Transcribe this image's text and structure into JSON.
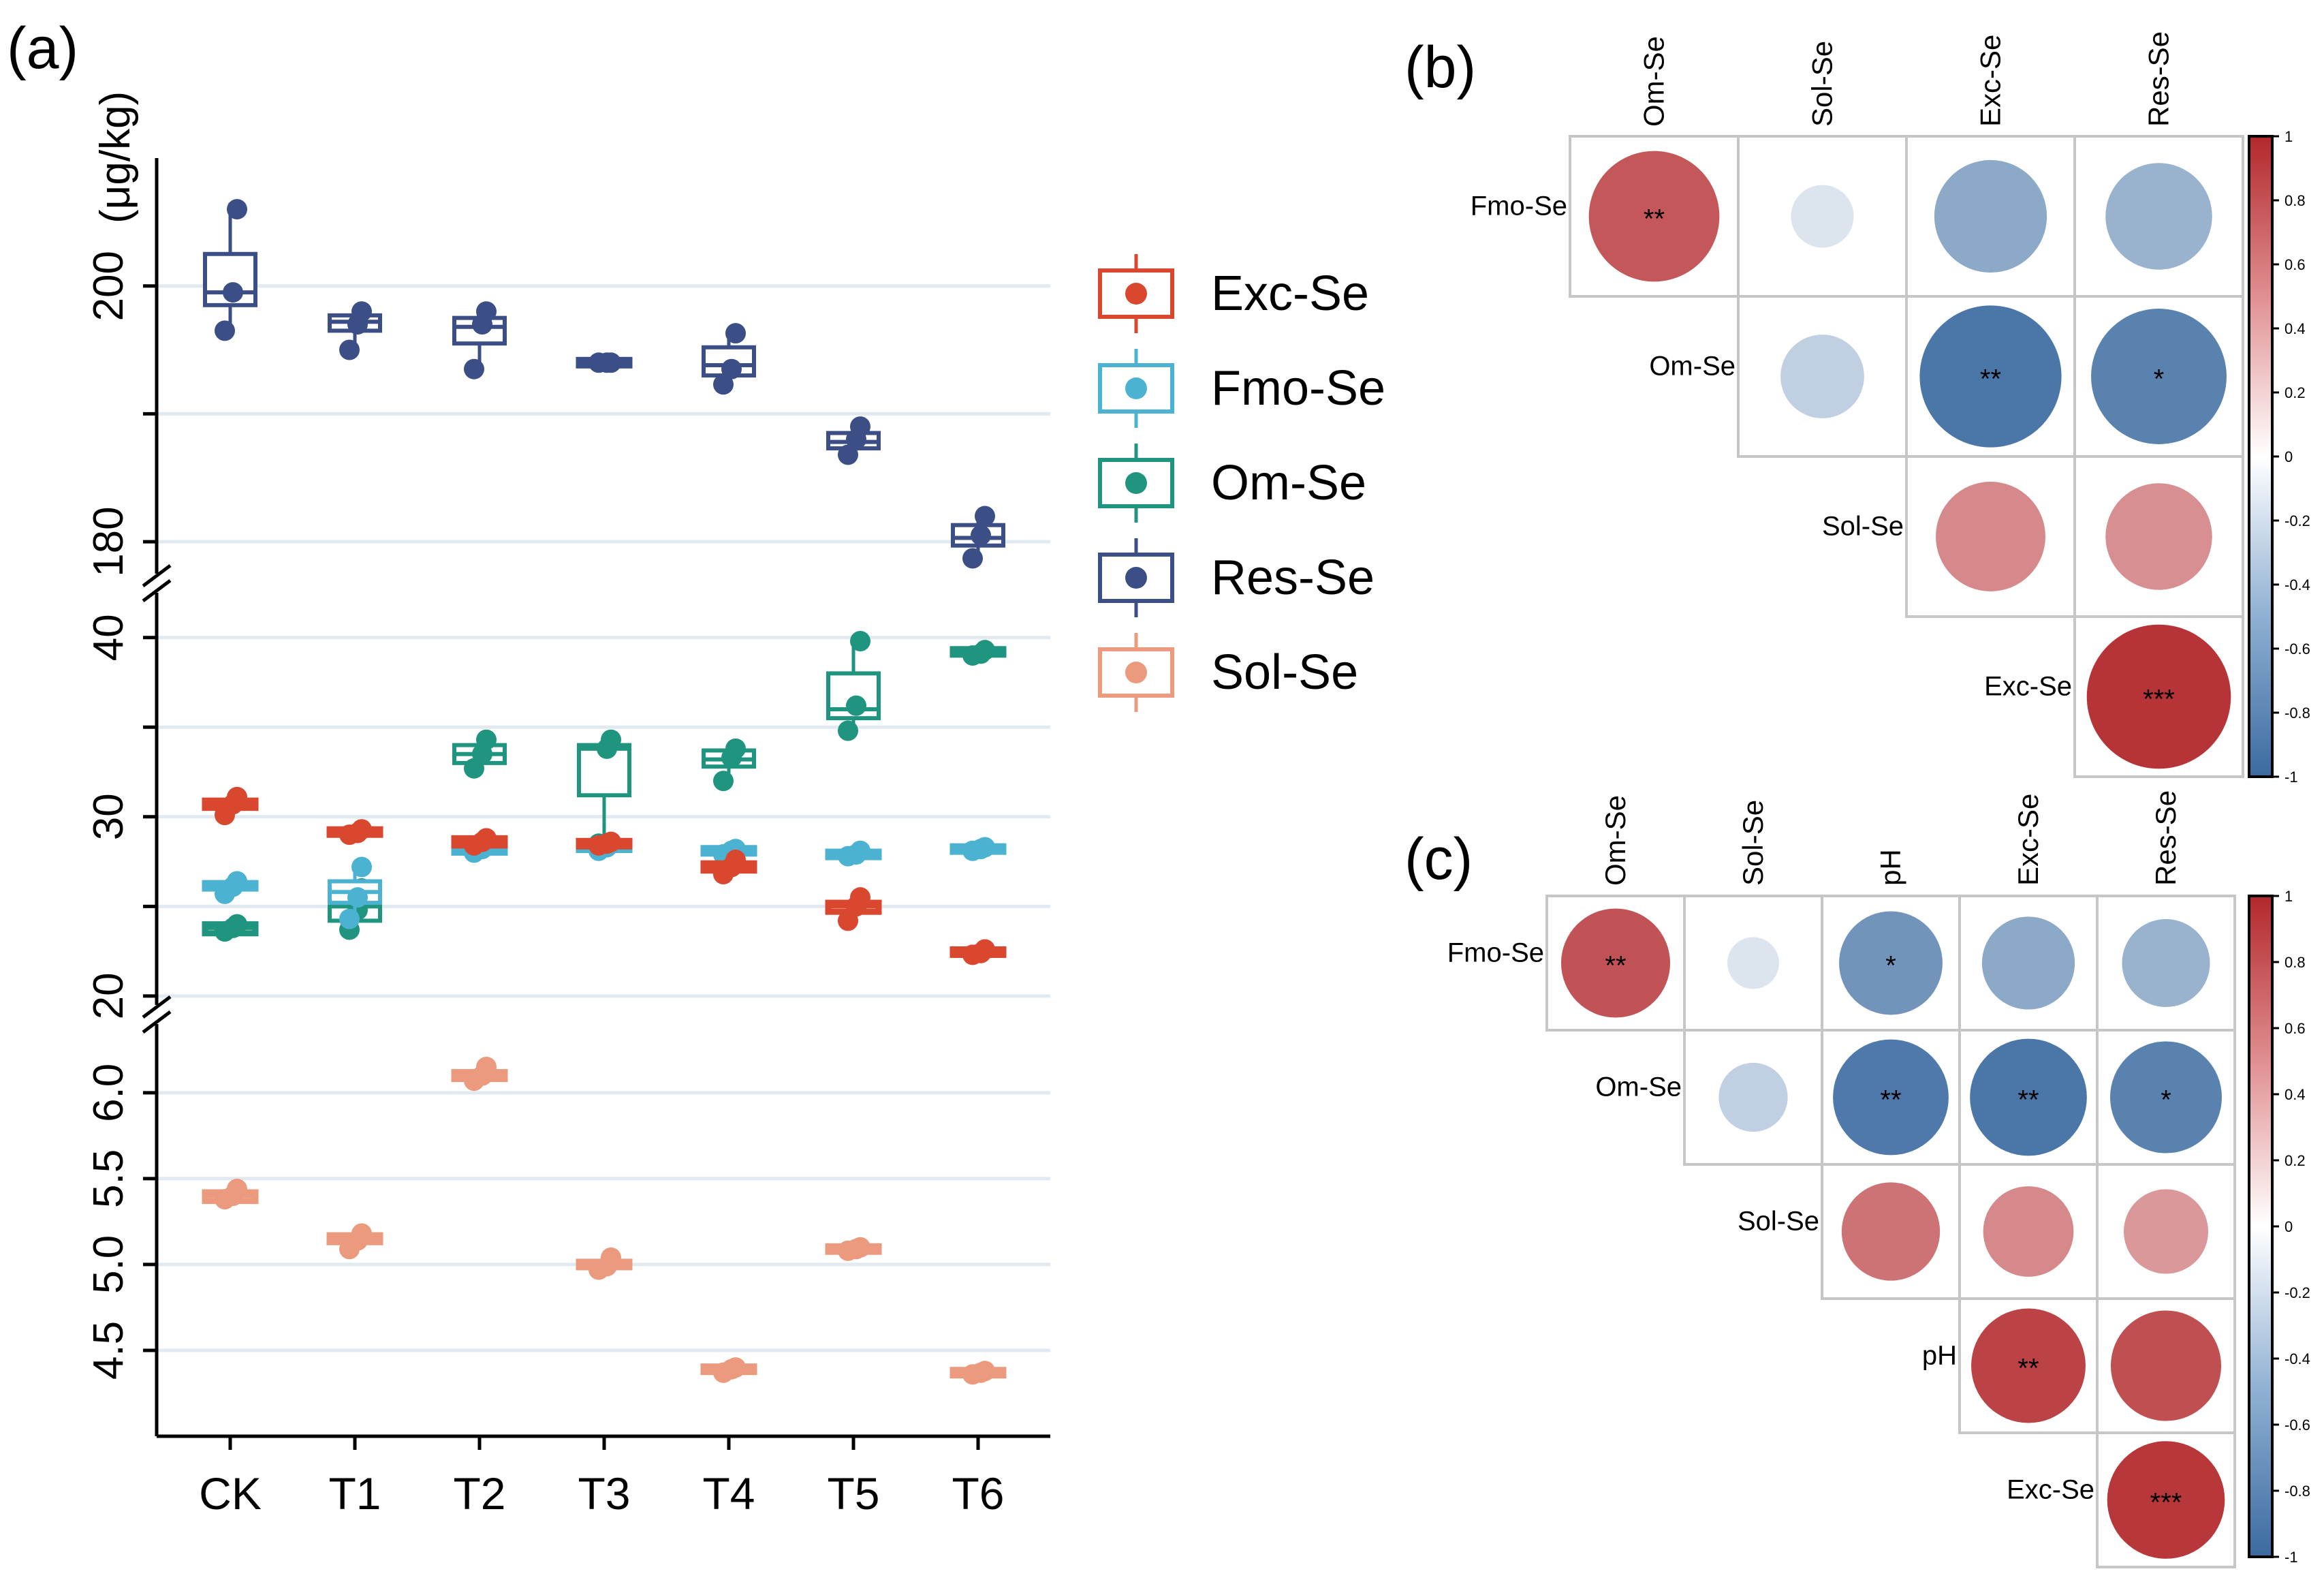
{
  "colors": {
    "Exc-Se": "#d9472f",
    "Fmo-Se": "#4bb3d1",
    "Om-Se": "#1f9580",
    "Res-Se": "#3b4f86",
    "Sol-Se": "#ec9a7e",
    "grid": "#e1eaf0",
    "axis": "#000000",
    "cell_border": "#c6c6c6",
    "cbar_pos": "#b2282c",
    "cbar_mid": "#ffffff",
    "cbar_neg": "#3b6aa0"
  },
  "chart_data": [
    {
      "id": "a",
      "type": "box",
      "panel_label": "(a)",
      "ylabel": "(μg/kg)",
      "categories": [
        "CK",
        "T1",
        "T2",
        "T3",
        "T4",
        "T5",
        "T6"
      ],
      "legend": [
        "Exc-Se",
        "Fmo-Se",
        "Om-Se",
        "Res-Se",
        "Sol-Se"
      ],
      "axis_breaks": [
        {
          "ylim": [
            177.5,
            210
          ],
          "ticks": [
            180,
            200
          ],
          "tick_labels": [
            "180",
            "200"
          ],
          "grid": [
            180,
            190,
            200
          ]
        },
        {
          "ylim": [
            19.5,
            42.5
          ],
          "ticks": [
            20,
            30,
            40
          ],
          "tick_labels": [
            "20",
            "30",
            "40"
          ],
          "grid": [
            20,
            25,
            30,
            35,
            40
          ]
        },
        {
          "ylim": [
            4.0,
            6.4
          ],
          "ticks": [
            4.5,
            5.0,
            5.5,
            6.0
          ],
          "tick_labels": [
            "4.5",
            "5.0",
            "5.5",
            "6.0"
          ],
          "grid": [
            4.5,
            5.0,
            5.5,
            6.0
          ]
        }
      ],
      "series": [
        {
          "name": "Res-Se",
          "segment": 0,
          "boxes": [
            [
              198.5,
              199.5,
              202.5
            ],
            [
              196.5,
              197.2,
              197.7
            ],
            [
              195.5,
              196.8,
              197.5
            ],
            [
              193.8,
              194,
              194.2
            ],
            [
              193,
              193.8,
              195.2
            ],
            [
              187.3,
              187.8,
              188.5
            ],
            [
              179.7,
              180.3,
              181.3
            ]
          ],
          "whiskers": [
            [
              196.5,
              206.5
            ],
            [
              195,
              198
            ],
            [
              193.8,
              198
            ],
            [
              193.7,
              194.2
            ],
            [
              192.5,
              196.5
            ],
            [
              187,
              189
            ],
            [
              179,
              182
            ]
          ],
          "points": [
            [
              196.5,
              199.5,
              206
            ],
            [
              195,
              197,
              198
            ],
            [
              193.5,
              197,
              198
            ],
            [
              194,
              194,
              194
            ],
            [
              192.3,
              193.5,
              196.3
            ],
            [
              186.8,
              188,
              189
            ],
            [
              178.7,
              180.5,
              182
            ]
          ]
        },
        {
          "name": "Om-Se",
          "segment": 1,
          "boxes": [
            [
              23.5,
              23.8,
              24.0
            ],
            [
              24.2,
              25,
              25.8
            ],
            [
              33,
              33.5,
              34
            ],
            [
              31.2,
              33.8,
              34
            ],
            [
              32.8,
              33.2,
              33.7
            ],
            [
              35.5,
              36,
              38
            ],
            [
              39,
              39.2,
              39.3
            ]
          ],
          "whiskers": [
            [
              23.5,
              24
            ],
            [
              23.7,
              26.2
            ],
            [
              32.7,
              34.5
            ],
            [
              28.5,
              34.3
            ],
            [
              32.2,
              33.8
            ],
            [
              34.8,
              39.8
            ],
            [
              39,
              39.3
            ]
          ],
          "points": [
            [
              23.6,
              23.8,
              24
            ],
            [
              23.7,
              24.8,
              26
            ],
            [
              32.7,
              33.5,
              34.3
            ],
            [
              28.5,
              33.8,
              34.3
            ],
            [
              32,
              33.3,
              33.8
            ],
            [
              34.8,
              36.2,
              39.8
            ],
            [
              39,
              39.1,
              39.3
            ]
          ]
        },
        {
          "name": "Fmo-Se",
          "segment": 1,
          "boxes": [
            [
              26,
              26.1,
              26.3
            ],
            [
              25.2,
              25.8,
              26.4
            ],
            [
              28,
              28.2,
              28.4
            ],
            [
              28.2,
              28.3,
              28.4
            ],
            [
              28,
              28.1,
              28.2
            ],
            [
              27.8,
              27.9,
              28
            ],
            [
              28.1,
              28.2,
              28.3
            ]
          ],
          "whiskers": [
            [
              25.7,
              26.4
            ],
            [
              24.3,
              27.3
            ],
            [
              27.9,
              28.5
            ],
            [
              28.1,
              28.5
            ],
            [
              27.9,
              28.2
            ],
            [
              27.7,
              28.1
            ],
            [
              28,
              28.3
            ]
          ],
          "points": [
            [
              25.7,
              26.1,
              26.4
            ],
            [
              24.3,
              25.5,
              27.2
            ],
            [
              28,
              28.2,
              28.5
            ],
            [
              28.1,
              28.3,
              28.5
            ],
            [
              27.9,
              28.1,
              28.2
            ],
            [
              27.8,
              27.9,
              28.1
            ],
            [
              28.1,
              28.2,
              28.3
            ]
          ]
        },
        {
          "name": "Exc-Se",
          "segment": 1,
          "boxes": [
            [
              30.5,
              30.7,
              30.9
            ],
            [
              29,
              29.1,
              29.3
            ],
            [
              28.4,
              28.6,
              28.8
            ],
            [
              28.4,
              28.5,
              28.6
            ],
            [
              27,
              27.2,
              27.4
            ],
            [
              24.7,
              25,
              25.2
            ],
            [
              22.3,
              22.4,
              22.6
            ]
          ],
          "whiskers": [
            [
              30,
              31.1
            ],
            [
              29,
              29.4
            ],
            [
              28.3,
              28.9
            ],
            [
              28.3,
              28.7
            ],
            [
              26.7,
              27.6
            ],
            [
              24.2,
              25.6
            ],
            [
              22.2,
              22.7
            ]
          ],
          "points": [
            [
              30.1,
              30.7,
              31.1
            ],
            [
              29,
              29.1,
              29.3
            ],
            [
              28.4,
              28.6,
              28.8
            ],
            [
              28.4,
              28.5,
              28.6
            ],
            [
              26.8,
              27.2,
              27.6
            ],
            [
              24.2,
              25,
              25.5
            ],
            [
              22.3,
              22.4,
              22.6
            ]
          ]
        },
        {
          "name": "Sol-Se",
          "segment": 2,
          "boxes": [
            [
              5.37,
              5.4,
              5.42
            ],
            [
              5.13,
              5.15,
              5.17
            ],
            [
              6.08,
              6.1,
              6.12
            ],
            [
              4.98,
              5.0,
              5.01
            ],
            [
              4.38,
              4.39,
              4.4
            ],
            [
              5.08,
              5.09,
              5.1
            ],
            [
              4.36,
              4.37,
              4.38
            ]
          ],
          "whiskers": [
            [
              5.35,
              5.45
            ],
            [
              5.08,
              5.19
            ],
            [
              6.06,
              6.16
            ],
            [
              4.96,
              5.04
            ],
            [
              4.36,
              4.41
            ],
            [
              5.07,
              5.11
            ],
            [
              4.35,
              4.39
            ]
          ],
          "points": [
            [
              5.38,
              5.4,
              5.44
            ],
            [
              5.09,
              5.14,
              5.18
            ],
            [
              6.07,
              6.1,
              6.15
            ],
            [
              4.97,
              4.99,
              5.04
            ],
            [
              4.37,
              4.39,
              4.4
            ],
            [
              5.08,
              5.09,
              5.1
            ],
            [
              4.36,
              4.37,
              4.38
            ]
          ]
        }
      ]
    },
    {
      "id": "b",
      "type": "heatmap",
      "panel_label": "(b)",
      "col_labels": [
        "Om-Se",
        "Sol-Se",
        "Exc-Se",
        "Res-Se"
      ],
      "row_labels": [
        "Fmo-Se",
        "Om-Se",
        "Sol-Se",
        "Exc-Se"
      ],
      "cells": [
        [
          0.78,
          -0.18,
          -0.58,
          -0.52
        ],
        [
          null,
          -0.32,
          -0.92,
          -0.84
        ],
        [
          null,
          null,
          0.55,
          0.52
        ],
        [
          null,
          null,
          null,
          0.95
        ]
      ],
      "signif": [
        [
          "**",
          "",
          "",
          ""
        ],
        [
          "",
          "",
          "**",
          "*"
        ],
        [
          "",
          "",
          "",
          ""
        ],
        [
          "",
          "",
          "",
          "***"
        ]
      ],
      "colorbar_ticks": [
        "1",
        "0.8",
        "0.6",
        "0.4",
        "0.2",
        "0",
        "-0.2",
        "-0.4",
        "-0.6",
        "-0.8",
        "-1"
      ]
    },
    {
      "id": "c",
      "type": "heatmap",
      "panel_label": "(c)",
      "col_labels": [
        "Om-Se",
        "Sol-Se",
        "pH",
        "Exc-Se",
        "Res-Se"
      ],
      "row_labels": [
        "Fmo-Se",
        "Om-Se",
        "Sol-Se",
        "pH",
        "Exc-Se"
      ],
      "cells": [
        [
          0.8,
          -0.18,
          -0.72,
          -0.58,
          -0.52
        ],
        [
          null,
          -0.32,
          -0.9,
          -0.92,
          -0.84
        ],
        [
          null,
          null,
          0.65,
          0.55,
          0.48
        ],
        [
          null,
          null,
          null,
          0.88,
          0.82
        ],
        [
          null,
          null,
          null,
          null,
          0.93
        ]
      ],
      "signif": [
        [
          "**",
          "",
          "*",
          "",
          ""
        ],
        [
          "",
          "",
          "**",
          "**",
          "*"
        ],
        [
          "",
          "",
          "",
          "",
          ""
        ],
        [
          "",
          "",
          "",
          "**",
          ""
        ],
        [
          "",
          "",
          "",
          "",
          "***"
        ]
      ],
      "colorbar_ticks": [
        "1",
        "0.8",
        "0.6",
        "0.4",
        "0.2",
        "0",
        "-0.2",
        "-0.4",
        "-0.6",
        "-0.8",
        "-1"
      ]
    }
  ]
}
